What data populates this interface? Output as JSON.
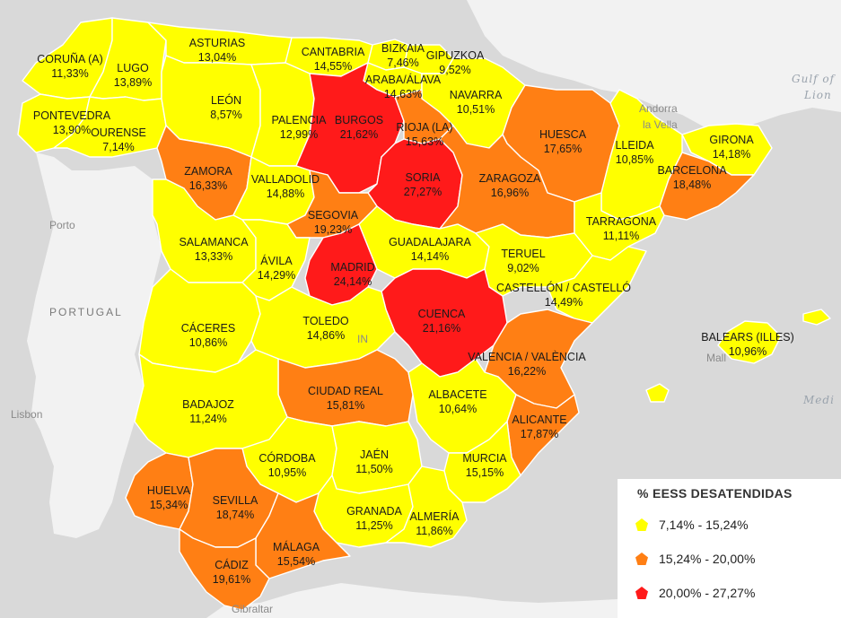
{
  "colors": {
    "yellow": "#ffff00",
    "orange": "#ff7f14",
    "red": "#ff1a1a",
    "sea": "#d9d9d9",
    "land": "#f2f2f2"
  },
  "background_labels": {
    "portugal": "PORTUGAL",
    "porto": "Porto",
    "lisbon": "Lisbon",
    "andorra_1": "Andorra",
    "andorra_2": "la Vella",
    "gulf_1": "Gulf of",
    "gulf_2": "Lion",
    "medi": "Medi",
    "gibraltar": "Gibraltar",
    "spain_fragment": "IN",
    "mallorca_fragment": "Mall"
  },
  "provinces": [
    {
      "name": "CORUÑA (A)",
      "value": "11,33%",
      "class": "yellow"
    },
    {
      "name": "LUGO",
      "value": "13,89%",
      "class": "yellow"
    },
    {
      "name": "ASTURIAS",
      "value": "13,04%",
      "class": "yellow"
    },
    {
      "name": "CANTABRIA",
      "value": "14,55%",
      "class": "yellow"
    },
    {
      "name": "BIZKAIA",
      "value": "7,46%",
      "class": "yellow"
    },
    {
      "name": "GIPUZKOA",
      "value": "9,52%",
      "class": "yellow"
    },
    {
      "name": "ARABA/ÁLAVA",
      "value": "14,63%",
      "class": "yellow"
    },
    {
      "name": "NAVARRA",
      "value": "10,51%",
      "class": "yellow"
    },
    {
      "name": "PONTEVEDRA",
      "value": "13,90%",
      "class": "yellow"
    },
    {
      "name": "OURENSE",
      "value": "7,14%",
      "class": "yellow"
    },
    {
      "name": "LEÓN",
      "value": "8,57%",
      "class": "yellow"
    },
    {
      "name": "PALENCIA",
      "value": "12,99%",
      "class": "yellow"
    },
    {
      "name": "BURGOS",
      "value": "21,62%",
      "class": "red"
    },
    {
      "name": "RIOJA (LA)",
      "value": "15,63%",
      "class": "orange"
    },
    {
      "name": "HUESCA",
      "value": "17,65%",
      "class": "orange"
    },
    {
      "name": "LLEIDA",
      "value": "10,85%",
      "class": "yellow"
    },
    {
      "name": "GIRONA",
      "value": "14,18%",
      "class": "yellow"
    },
    {
      "name": "BARCELONA",
      "value": "18,48%",
      "class": "orange"
    },
    {
      "name": "ZAMORA",
      "value": "16,33%",
      "class": "orange"
    },
    {
      "name": "VALLADOLID",
      "value": "14,88%",
      "class": "yellow"
    },
    {
      "name": "SORIA",
      "value": "27,27%",
      "class": "red"
    },
    {
      "name": "ZARAGOZA",
      "value": "16,96%",
      "class": "orange"
    },
    {
      "name": "TARRAGONA",
      "value": "11,11%",
      "class": "yellow"
    },
    {
      "name": "SEGOVIA",
      "value": "19,23%",
      "class": "orange"
    },
    {
      "name": "SALAMANCA",
      "value": "13,33%",
      "class": "yellow"
    },
    {
      "name": "ÁVILA",
      "value": "14,29%",
      "class": "yellow"
    },
    {
      "name": "GUADALAJARA",
      "value": "14,14%",
      "class": "yellow"
    },
    {
      "name": "TERUEL",
      "value": "9,02%",
      "class": "yellow"
    },
    {
      "name": "MADRID",
      "value": "24,14%",
      "class": "red"
    },
    {
      "name": "CASTELLÓN / CASTELLÓ",
      "value": "14,49%",
      "class": "yellow"
    },
    {
      "name": "CUENCA",
      "value": "21,16%",
      "class": "red"
    },
    {
      "name": "CÁCERES",
      "value": "10,86%",
      "class": "yellow"
    },
    {
      "name": "TOLEDO",
      "value": "14,86%",
      "class": "yellow"
    },
    {
      "name": "BALEARS (ILLES)",
      "value": "10,96%",
      "class": "yellow"
    },
    {
      "name": "VALENCIA / VALÈNCIA",
      "value": "16,22%",
      "class": "orange"
    },
    {
      "name": "CIUDAD REAL",
      "value": "15,81%",
      "class": "orange"
    },
    {
      "name": "ALBACETE",
      "value": "10,64%",
      "class": "yellow"
    },
    {
      "name": "BADAJOZ",
      "value": "11,24%",
      "class": "yellow"
    },
    {
      "name": "ALICANTE",
      "value": "17,87%",
      "class": "orange"
    },
    {
      "name": "CÓRDOBA",
      "value": "10,95%",
      "class": "yellow"
    },
    {
      "name": "JAÉN",
      "value": "11,50%",
      "class": "yellow"
    },
    {
      "name": "MURCIA",
      "value": "15,15%",
      "class": "yellow"
    },
    {
      "name": "HUELVA",
      "value": "15,34%",
      "class": "orange"
    },
    {
      "name": "SEVILLA",
      "value": "18,74%",
      "class": "orange"
    },
    {
      "name": "GRANADA",
      "value": "11,25%",
      "class": "yellow"
    },
    {
      "name": "ALMERÍA",
      "value": "11,86%",
      "class": "yellow"
    },
    {
      "name": "MÁLAGA",
      "value": "15,54%",
      "class": "orange"
    },
    {
      "name": "CÁDIZ",
      "value": "19,61%",
      "class": "orange"
    }
  ],
  "legend": {
    "title": "% EESS DESATENDIDAS",
    "items": [
      {
        "label": "7,14% - 15,24%",
        "class": "yellow"
      },
      {
        "label": "15,24% - 20,00%",
        "class": "orange"
      },
      {
        "label": "20,00% - 27,27%",
        "class": "red"
      }
    ]
  }
}
